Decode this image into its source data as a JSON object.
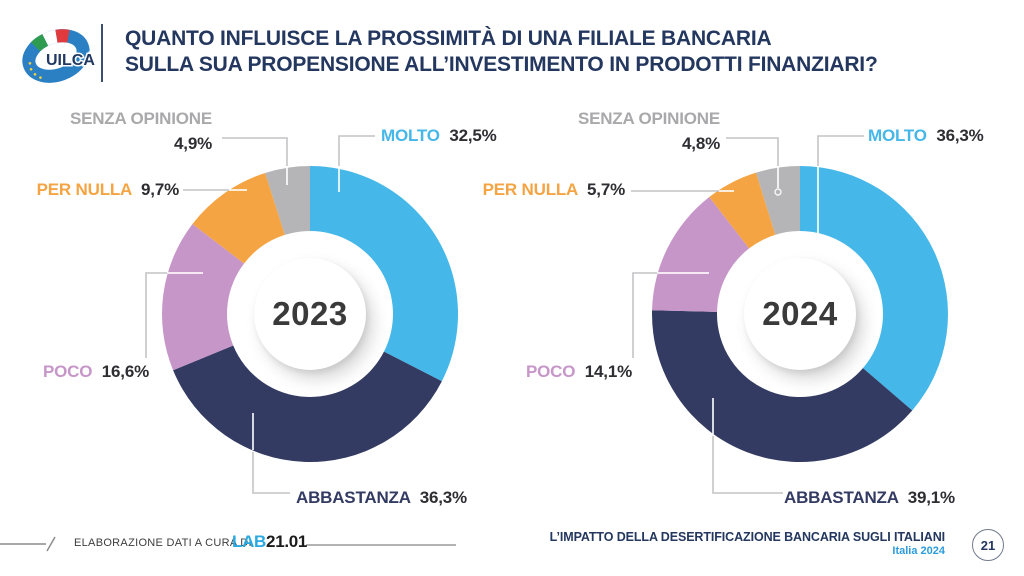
{
  "header": {
    "logo_text": "UILCA",
    "title_line1": "QUANTO INFLUISCE LA PROSSIMITÀ DI UNA FILIALE BANCARIA",
    "title_line2": "SULLA SUA PROPENSIONE ALL’INVESTIMENTO IN PRODOTTI FINANZIARI?"
  },
  "chart_data": [
    {
      "type": "pie",
      "variant": "donut",
      "title": "2023",
      "categories": [
        "MOLTO",
        "ABBASTANZA",
        "POCO",
        "PER NULLA",
        "SENZA OPINIONE"
      ],
      "values": [
        32.5,
        36.3,
        16.6,
        9.7,
        4.9
      ],
      "value_labels": [
        "32,5%",
        "36,3%",
        "16,6%",
        "9,7%",
        "4,9%"
      ],
      "colors": [
        "#45B7E8",
        "#333B62",
        "#C796C9",
        "#F5A443",
        "#B5B5B7"
      ],
      "start_angle_deg": 0,
      "direction": "clockwise",
      "legend_position": "around"
    },
    {
      "type": "pie",
      "variant": "donut",
      "title": "2024",
      "categories": [
        "MOLTO",
        "ABBASTANZA",
        "POCO",
        "PER NULLA",
        "SENZA OPINIONE"
      ],
      "values": [
        36.3,
        39.1,
        14.1,
        5.7,
        4.8
      ],
      "value_labels": [
        "36,3%",
        "39,1%",
        "14,1%",
        "5,7%",
        "4,8%"
      ],
      "colors": [
        "#45B7E8",
        "#333B62",
        "#C796C9",
        "#F5A443",
        "#B5B5B7"
      ],
      "start_angle_deg": 0,
      "direction": "clockwise",
      "legend_position": "around"
    }
  ],
  "colors": {
    "title_navy": "#24375F",
    "value_text": "#2E2E33",
    "senza_label_gray": "#A9A9AB",
    "lab_blue": "#29A9E1",
    "subtitle_blue": "#2D9CDB"
  },
  "footer": {
    "credit_prefix": "ELABORAZIONE DATI A CURA DI",
    "lab_blue": "LAB",
    "lab_black": "21.01",
    "report_title": "L’IMPATTO DELLA DESERTIFICAZIONE BANCARIA SUGLI ITALIANI",
    "report_subtitle": "Italia 2024",
    "page_number": "21"
  }
}
